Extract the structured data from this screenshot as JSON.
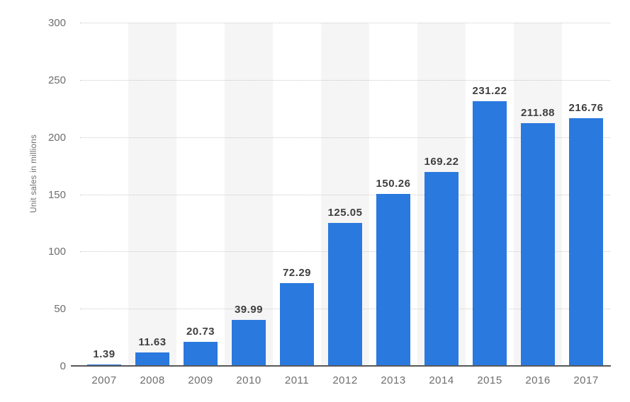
{
  "chart_data": {
    "type": "bar",
    "title": "",
    "xlabel": "",
    "ylabel": "Unit sales in millions",
    "categories": [
      "2007",
      "2008",
      "2009",
      "2010",
      "2011",
      "2012",
      "2013",
      "2014",
      "2015",
      "2016",
      "2017"
    ],
    "values": [
      1.39,
      11.63,
      20.73,
      39.99,
      72.29,
      125.05,
      150.26,
      169.22,
      231.22,
      211.88,
      216.76
    ],
    "y_ticks": [
      0,
      50,
      100,
      150,
      200,
      250,
      300
    ],
    "ylim": [
      0,
      300
    ],
    "grid": "horizontal dotted lines at each y tick",
    "legend": null,
    "background_bands": "alternating light vertical stripes behind every second category column",
    "colors": {
      "bar": "#2a79de",
      "band": "#f5f5f5",
      "gridline": "#c9c9c9",
      "axis_line": "#58585a",
      "tick_label": "#6e6e6e",
      "value_label": "#3f3f3f",
      "background": "#ffffff"
    }
  }
}
